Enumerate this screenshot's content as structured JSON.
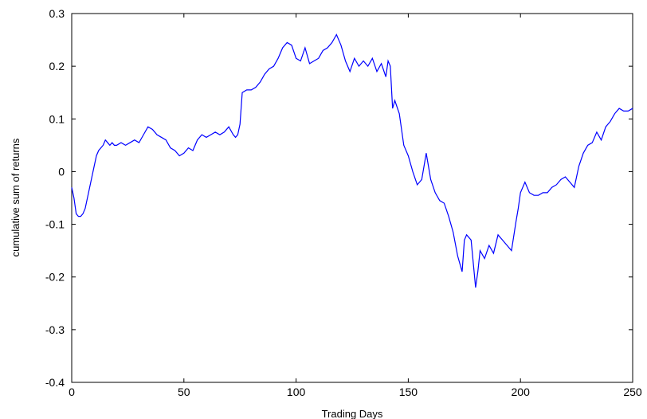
{
  "chart_data": {
    "type": "line",
    "title": "",
    "xlabel": "Trading Days",
    "ylabel": "cumulative sum of returns",
    "xlim": [
      0,
      250
    ],
    "ylim": [
      -0.4,
      0.3
    ],
    "xticks": [
      0,
      50,
      100,
      150,
      200,
      250
    ],
    "xtick_labels": [
      "0",
      "50",
      "100",
      "150",
      "200",
      "250"
    ],
    "yticks": [
      -0.4,
      -0.3,
      -0.2,
      -0.1,
      0,
      0.1,
      0.2,
      0.3
    ],
    "ytick_labels": [
      "-0.4",
      "-0.3",
      "-0.2",
      "-0.1",
      "0",
      "0.1",
      "0.2",
      "0.3"
    ],
    "grid": false,
    "line_color": "#0000ff",
    "series": [
      {
        "x": [
          0,
          1,
          2,
          3,
          4,
          5,
          6,
          7,
          8,
          9,
          10,
          11,
          12,
          13,
          14,
          15,
          16,
          17,
          18,
          19,
          20,
          22,
          24,
          26,
          28,
          30,
          32,
          34,
          36,
          38,
          40,
          42,
          44,
          46,
          48,
          50,
          52,
          54,
          56,
          58,
          60,
          62,
          64,
          66,
          68,
          70,
          72,
          73,
          74,
          75,
          76,
          78,
          80,
          82,
          84,
          86,
          88,
          90,
          92,
          94,
          96,
          98,
          100,
          102,
          104,
          106,
          108,
          110,
          112,
          114,
          116,
          118,
          119,
          120,
          122,
          124,
          126,
          128,
          130,
          132,
          134,
          136,
          138,
          140,
          141,
          142,
          143,
          144,
          146,
          148,
          150,
          152,
          154,
          156,
          158,
          160,
          162,
          164,
          166,
          168,
          170,
          172,
          174,
          175,
          176,
          178,
          180,
          181,
          182,
          184,
          186,
          188,
          190,
          192,
          194,
          196,
          198,
          199,
          200,
          202,
          204,
          206,
          208,
          210,
          212,
          214,
          216,
          218,
          220,
          222,
          224,
          226,
          228,
          230,
          232,
          234,
          236,
          238,
          240,
          242,
          244,
          246,
          248,
          250
        ],
        "y": [
          -0.03,
          -0.05,
          -0.08,
          -0.085,
          -0.085,
          -0.08,
          -0.07,
          -0.05,
          -0.03,
          -0.01,
          0.01,
          0.03,
          0.04,
          0.045,
          0.05,
          0.06,
          0.055,
          0.05,
          0.055,
          0.05,
          0.05,
          0.055,
          0.05,
          0.055,
          0.06,
          0.055,
          0.07,
          0.085,
          0.08,
          0.07,
          0.065,
          0.06,
          0.045,
          0.04,
          0.03,
          0.035,
          0.045,
          0.04,
          0.06,
          0.07,
          0.065,
          0.07,
          0.075,
          0.07,
          0.075,
          0.085,
          0.07,
          0.065,
          0.07,
          0.09,
          0.15,
          0.155,
          0.155,
          0.16,
          0.17,
          0.185,
          0.195,
          0.2,
          0.215,
          0.235,
          0.245,
          0.24,
          0.215,
          0.21,
          0.235,
          0.205,
          0.21,
          0.215,
          0.23,
          0.235,
          0.245,
          0.26,
          0.25,
          0.24,
          0.21,
          0.19,
          0.215,
          0.2,
          0.21,
          0.2,
          0.215,
          0.19,
          0.205,
          0.18,
          0.21,
          0.2,
          0.12,
          0.135,
          0.11,
          0.05,
          0.03,
          0.0,
          -0.025,
          -0.015,
          0.035,
          -0.015,
          -0.04,
          -0.055,
          -0.06,
          -0.085,
          -0.115,
          -0.16,
          -0.19,
          -0.13,
          -0.12,
          -0.13,
          -0.22,
          -0.19,
          -0.15,
          -0.165,
          -0.14,
          -0.155,
          -0.12,
          -0.13,
          -0.14,
          -0.15,
          -0.095,
          -0.07,
          -0.04,
          -0.02,
          -0.04,
          -0.045,
          -0.045,
          -0.04,
          -0.04,
          -0.03,
          -0.025,
          -0.015,
          -0.01,
          -0.02,
          -0.03,
          0.01,
          0.035,
          0.05,
          0.055,
          0.075,
          0.06,
          0.085,
          0.095,
          0.11,
          0.12,
          0.115,
          0.115,
          0.12
        ]
      }
    ]
  }
}
